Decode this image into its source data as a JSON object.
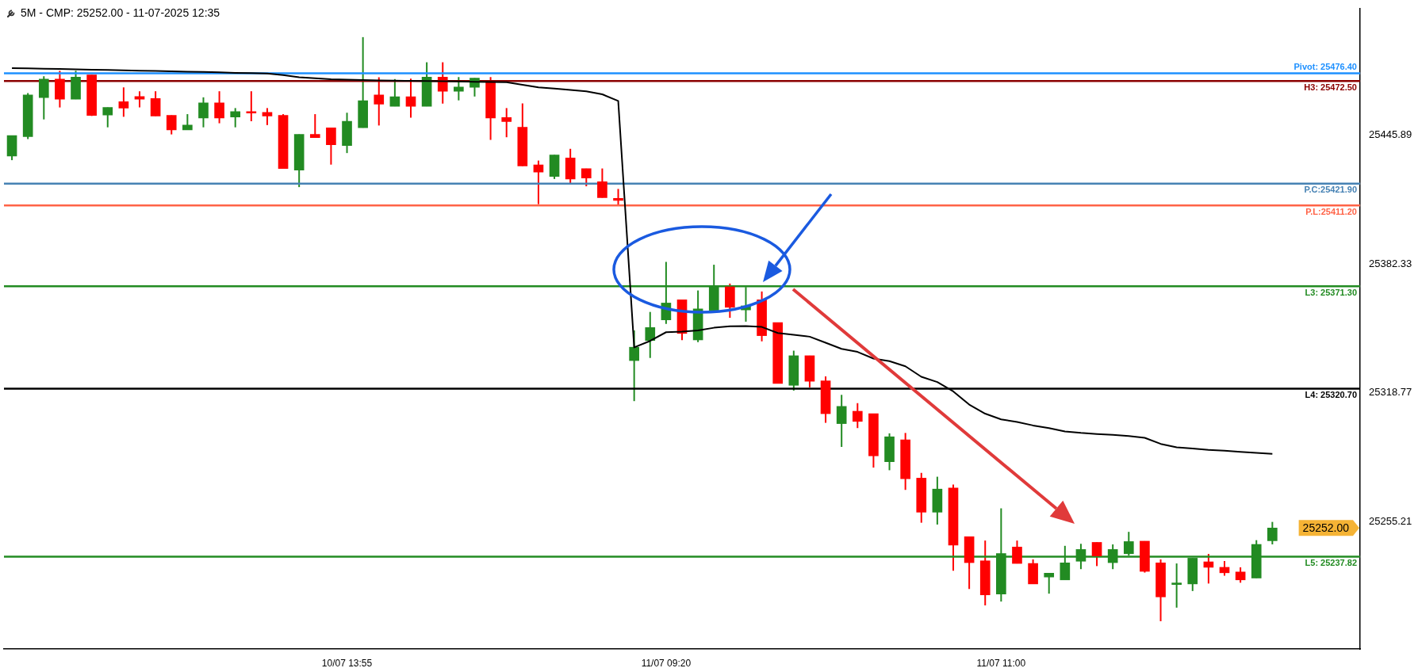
{
  "chart_data": {
    "type": "candlestick",
    "title": "5M -  CMP: 25252.00 - 11-07-2025 12:35",
    "categories": [
      null,
      null,
      null,
      null,
      null,
      null,
      null,
      null,
      null,
      null,
      null,
      null,
      null,
      null,
      null,
      null,
      null,
      null,
      null,
      null,
      null,
      "10/07 13:55",
      null,
      null,
      null,
      null,
      null,
      null,
      null,
      null,
      null,
      null,
      null,
      null,
      null,
      null,
      null,
      null,
      null,
      null,
      null,
      "11/07 09:20",
      null,
      null,
      null,
      null,
      null,
      null,
      null,
      null,
      null,
      null,
      null,
      null,
      null,
      null,
      null,
      null,
      null,
      null,
      null,
      null,
      "11/07 11:00",
      null,
      null,
      null,
      null,
      null,
      null,
      null,
      null,
      null,
      null,
      null,
      null,
      null,
      null,
      null,
      null,
      null
    ],
    "ohlc": [
      [
        25435.5,
        25445.6,
        25433.5,
        25445.6
      ],
      [
        25445.1,
        25466.6,
        25443.9,
        25465.7
      ],
      [
        25464.4,
        25474.9,
        25453.6,
        25473.5
      ],
      [
        25473.5,
        25477.6,
        25459.5,
        25463.6
      ],
      [
        25463.6,
        25477.6,
        25463.6,
        25474.5
      ],
      [
        25475.5,
        25475.5,
        25455.3,
        25455.6
      ],
      [
        25455.8,
        25459.5,
        25449.7,
        25459.5
      ],
      [
        25462.3,
        25469.4,
        25454.9,
        25459.2
      ],
      [
        25464.9,
        25467.5,
        25459.5,
        25463.6
      ],
      [
        25463.9,
        25467.5,
        25455.3,
        25455.3
      ],
      [
        25455.6,
        25455.6,
        25446.2,
        25448.4
      ],
      [
        25448.4,
        25456.2,
        25448.4,
        25450.8
      ],
      [
        25454.3,
        25464.5,
        25449.7,
        25461.8
      ],
      [
        25461.8,
        25467.5,
        25451.7,
        25454.3
      ],
      [
        25454.8,
        25459.2,
        25449.7,
        25457.5
      ],
      [
        25457.5,
        25467.5,
        25452.7,
        25456.7
      ],
      [
        25457.1,
        25459.2,
        25450.8,
        25455.3
      ],
      [
        25455.6,
        25456.2,
        25429.4,
        25429.4
      ],
      [
        25428.6,
        25446.2,
        25420.2,
        25446.2
      ],
      [
        25446.2,
        25456.2,
        25444.6,
        25444.6
      ],
      [
        25449.4,
        25449.4,
        25431.3,
        25441.1
      ],
      [
        25440.7,
        25456.9,
        25437.0,
        25452.7
      ],
      [
        25449.5,
        25494.2,
        25449.5,
        25462.8
      ],
      [
        25465.7,
        25474.4,
        25450.6,
        25461.1
      ],
      [
        25460.1,
        25473.5,
        25460.1,
        25464.8
      ],
      [
        25464.8,
        25473.7,
        25454.5,
        25460.1
      ],
      [
        25460.1,
        25481.8,
        25460.1,
        25474.5
      ],
      [
        25474.5,
        25481.8,
        25461.4,
        25467.5
      ],
      [
        25467.5,
        25474.5,
        25463.0,
        25469.6
      ],
      [
        25469.4,
        25474.0,
        25464.9,
        25474.0
      ],
      [
        25471.9,
        25474.5,
        25443.5,
        25454.3
      ],
      [
        25454.5,
        25459.2,
        25444.8,
        25452.5
      ],
      [
        25449.7,
        25461.5,
        25430.6,
        25430.6
      ],
      [
        25431.2,
        25433.3,
        25411.8,
        25427.6
      ],
      [
        25425.5,
        25436.1,
        25424.2,
        25436.1
      ],
      [
        25434.6,
        25439.1,
        25421.5,
        25424.2
      ],
      [
        25429.3,
        25429.3,
        25420.6,
        25424.7
      ],
      [
        25422.9,
        25429.4,
        25415.0,
        25415.0
      ],
      [
        25414.6,
        25419.3,
        25410.9,
        25413.6
      ],
      [
        25334.6,
        25349.5,
        25314.6,
        25341.2
      ],
      [
        25344.5,
        25358.6,
        25335.9,
        25350.9
      ],
      [
        25354.7,
        25383.3,
        25352.7,
        25363.0
      ],
      [
        25364.6,
        25364.6,
        25344.7,
        25348.0
      ],
      [
        25344.8,
        25369.2,
        25343.7,
        25360.1
      ],
      [
        25359.4,
        25381.9,
        25359.4,
        25371.3
      ],
      [
        25371.0,
        25372.6,
        25355.7,
        25360.9
      ],
      [
        25359.6,
        25370.9,
        25353.8,
        25361.6
      ],
      [
        25364.6,
        25368.7,
        25344.1,
        25346.9
      ],
      [
        25353.4,
        25353.4,
        25323.3,
        25323.3
      ],
      [
        25322.4,
        25339.5,
        25319.8,
        25337.0
      ],
      [
        25337.0,
        25337.0,
        25321.4,
        25324.4
      ],
      [
        25324.6,
        25326.8,
        25303.9,
        25308.4
      ],
      [
        25303.5,
        25317.7,
        25292.0,
        25312.0
      ],
      [
        25309.6,
        25313.6,
        25301.3,
        25304.6
      ],
      [
        25308.4,
        25308.4,
        25281.8,
        25287.6
      ],
      [
        25284.7,
        25298.7,
        25280.5,
        25297.0
      ],
      [
        25295.5,
        25298.9,
        25270.8,
        25276.3
      ],
      [
        25276.6,
        25279.2,
        25254.6,
        25259.8
      ],
      [
        25259.8,
        25277.3,
        25253.7,
        25271.2
      ],
      [
        25271.7,
        25273.4,
        25230.9,
        25243.6
      ],
      [
        25247.7,
        25247.7,
        25221.9,
        25234.9
      ],
      [
        25235.8,
        25245.8,
        25213.8,
        25219.0
      ],
      [
        25219.4,
        25261.7,
        25215.7,
        25239.4
      ],
      [
        25242.6,
        25245.8,
        25234.5,
        25234.5
      ],
      [
        25234.5,
        25236.5,
        25224.4,
        25224.4
      ],
      [
        25227.8,
        25229.7,
        25219.6,
        25229.7
      ],
      [
        25226.4,
        25243.2,
        25226.4,
        25234.8
      ],
      [
        25235.6,
        25244.2,
        25231.7,
        25241.4
      ],
      [
        25244.9,
        25244.9,
        25233.2,
        25238.2
      ],
      [
        25234.9,
        25243.9,
        25231.7,
        25241.4
      ],
      [
        25239.3,
        25250.1,
        25238.4,
        25245.3
      ],
      [
        25245.5,
        25245.5,
        25230.0,
        25230.6
      ],
      [
        25234.8,
        25236.5,
        25206.0,
        25218.0
      ],
      [
        25224.1,
        25234.5,
        25212.7,
        25224.5
      ],
      [
        25224.4,
        25237.1,
        25220.9,
        25237.1
      ],
      [
        25235.3,
        25239.2,
        25224.6,
        25232.6
      ],
      [
        25232.6,
        25235.7,
        25228.5,
        25229.9
      ],
      [
        25230.3,
        25232.6,
        25225.0,
        25226.4
      ],
      [
        25227.3,
        25246.0,
        25227.3,
        25243.9
      ],
      [
        25245.7,
        25255.0,
        25243.9,
        25252.0
      ]
    ],
    "colors": [
      "#228b22",
      "#228b22",
      "#228b22",
      "#ff0000",
      "#228b22",
      "#ff0000",
      "#228b22",
      "#ff0000",
      "#ff0000",
      "#ff0000",
      "#ff0000",
      "#228b22",
      "#228b22",
      "#ff0000",
      "#228b22",
      "#ff0000",
      "#ff0000",
      "#ff0000",
      "#228b22",
      "#ff0000",
      "#ff0000",
      "#228b22",
      "#228b22",
      "#ff0000",
      "#228b22",
      "#ff0000",
      "#228b22",
      "#ff0000",
      "#228b22",
      "#228b22",
      "#ff0000",
      "#ff0000",
      "#ff0000",
      "#ff0000",
      "#228b22",
      "#ff0000",
      "#ff0000",
      "#ff0000",
      "#ff0000",
      "#228b22",
      "#228b22",
      "#228b22",
      "#ff0000",
      "#228b22",
      "#228b22",
      "#ff0000",
      "#228b22",
      "#ff0000",
      "#ff0000",
      "#228b22",
      "#ff0000",
      "#ff0000",
      "#228b22",
      "#ff0000",
      "#ff0000",
      "#228b22",
      "#ff0000",
      "#ff0000",
      "#228b22",
      "#ff0000",
      "#ff0000",
      "#ff0000",
      "#228b22",
      "#ff0000",
      "#ff0000",
      "#228b22",
      "#228b22",
      "#228b22",
      "#ff0000",
      "#228b22",
      "#228b22",
      "#ff0000",
      "#ff0000",
      "#228b22",
      "#228b22",
      "#ff0000",
      "#ff0000",
      "#ff0000",
      "#228b22",
      "#228b22"
    ],
    "series": [
      {
        "type": "line",
        "color": "#000000",
        "values": [
          25478.9,
          25478.8,
          25478.6,
          25478.5,
          25478.3,
          25478.1,
          25478.0,
          25477.8,
          25477.6,
          25477.5,
          25477.3,
          25477.1,
          25477.0,
          25476.8,
          25476.6,
          25476.5,
          25476.3,
          25475.5,
          25474.4,
          25473.9,
          25473.4,
          25473.2,
          25473.0,
          25472.8,
          25472.7,
          25472.6,
          25472.5,
          25472.4,
          25472.3,
          25472.2,
          25472.1,
          25472.0,
          25470.7,
          25469.4,
          25468.8,
          25468.1,
          25467.5,
          25466.0,
          25462.7,
          25341.1,
          25344.3,
          25348.6,
          25348.9,
          25349.5,
          25350.8,
          25351.5,
          25351.6,
          25351.2,
          25348.2,
          25347.3,
          25346.4,
          25343.4,
          25340.4,
          25338.9,
          25335.6,
          25334.3,
          25331.8,
          25326.6,
          25324.0,
          25319.4,
          25312.9,
          25308.4,
          25305.6,
          25304.3,
          25302.6,
          25301.3,
          25299.6,
          25298.9,
          25298.4,
          25298.0,
          25297.4,
          25296.5,
          25293.5,
          25291.8,
          25291.2,
          25290.5,
          25290.1,
          25289.6,
          25289.1,
          25288.6
        ]
      }
    ],
    "ylim": [
      25192.3,
      25508.3
    ],
    "yticks": [
      25445.89,
      25382.33,
      25318.77,
      25255.21
    ],
    "ref_lines": [
      {
        "axis": "y",
        "value": 25476.4,
        "label": "Pivot: 25476.40",
        "color": "#1e90ff"
      },
      {
        "axis": "y",
        "value": 25472.5,
        "label": "H3: 25472.50",
        "color": "#8b0000"
      },
      {
        "axis": "y",
        "value": 25421.9,
        "label": "P.C:25421.90",
        "color": "#4682b4"
      },
      {
        "axis": "y",
        "value": 25411.2,
        "label": "P.L:25411.20",
        "color": "#ff6347"
      },
      {
        "axis": "y",
        "value": 25371.3,
        "label": "L3: 25371.30",
        "color": "#228b22"
      },
      {
        "axis": "y",
        "value": 25320.7,
        "label": "L4: 25320.70",
        "color": "#000000"
      },
      {
        "axis": "y",
        "value": 25237.82,
        "label": "L5: 25237.82",
        "color": "#228b22"
      }
    ],
    "annotations": [
      "25252.00"
    ]
  }
}
